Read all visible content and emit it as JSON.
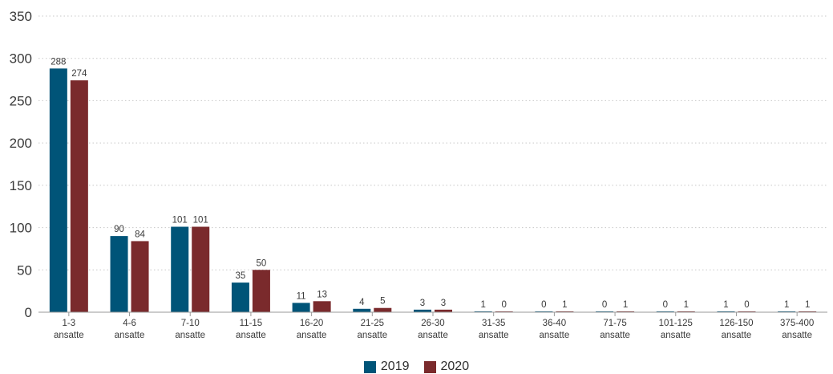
{
  "chart_data": {
    "type": "bar",
    "categories": [
      [
        "1-3",
        "ansatte"
      ],
      [
        "4-6",
        "ansatte"
      ],
      [
        "7-10",
        "ansatte"
      ],
      [
        "11-15",
        "ansatte"
      ],
      [
        "16-20",
        "ansatte"
      ],
      [
        "21-25",
        "ansatte"
      ],
      [
        "26-30",
        "ansatte"
      ],
      [
        "31-35",
        "ansatte"
      ],
      [
        "36-40",
        "ansatte"
      ],
      [
        "71-75",
        "ansatte"
      ],
      [
        "101-125",
        "ansatte"
      ],
      [
        "126-150",
        "ansatte"
      ],
      [
        "375-400",
        "ansatte"
      ]
    ],
    "series": [
      {
        "name": "2019",
        "color": "#005478",
        "values": [
          288,
          90,
          101,
          35,
          11,
          4,
          3,
          1,
          0,
          0,
          0,
          1,
          1
        ]
      },
      {
        "name": "2020",
        "color": "#7a2a2c",
        "values": [
          274,
          84,
          101,
          50,
          13,
          5,
          3,
          0,
          1,
          1,
          1,
          0,
          1
        ]
      }
    ],
    "yticks": [
      0,
      50,
      100,
      150,
      200,
      250,
      300,
      350
    ],
    "ylim": [
      0,
      350
    ],
    "grid": true,
    "legend_position": "bottom-center"
  }
}
